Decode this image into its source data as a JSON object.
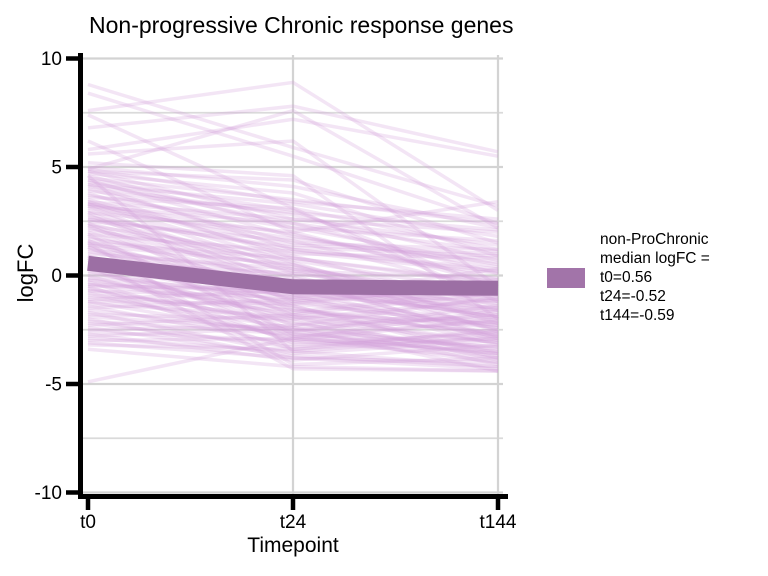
{
  "title": "Non-progressive Chronic response genes",
  "chart_data": {
    "type": "line",
    "title": "Non-progressive Chronic response genes",
    "xlabel": "Timepoint",
    "ylabel": "logFC",
    "x_categories": [
      "t0",
      "t24",
      "t144"
    ],
    "y_ticks": [
      10,
      5,
      0,
      -5,
      -10
    ],
    "y_minor_gridlines": [
      7.5,
      2.5,
      -2.5,
      -7.5
    ],
    "ylim": [
      -10,
      10
    ],
    "grid": "major-and-minor-light-gray",
    "legend_position": "right",
    "legend": {
      "swatch_color": "#a274a9",
      "lines": [
        "non-ProChronic",
        "median logFC =",
        "t0=0.56",
        "t24=-0.52",
        "t144=-0.59"
      ]
    },
    "median_series": {
      "name": "non-ProChronic median logFC",
      "values": [
        0.56,
        -0.52,
        -0.59
      ],
      "color": "#9c6fa4"
    },
    "background_lines": {
      "color": "#d29fda",
      "opacity": 0.27,
      "note": "individual gene logFC trajectories (approximate)",
      "values": [
        [
          8.8,
          5.9,
          3.2
        ],
        [
          8.4,
          5.5,
          2.4
        ],
        [
          7.6,
          8.9,
          3.0
        ],
        [
          6.8,
          7.8,
          5.7
        ],
        [
          5.8,
          7.2,
          5.5
        ],
        [
          7.4,
          3.1,
          1.2
        ],
        [
          5.6,
          6.2,
          -0.5
        ],
        [
          4.9,
          7.6,
          2.2
        ],
        [
          6.2,
          2.0,
          3.4
        ],
        [
          5.2,
          4.6,
          -2.0
        ],
        [
          -4.9,
          -2.9,
          -3.6
        ],
        [
          -3.4,
          -4.2,
          -4.4
        ],
        [
          1.5,
          -4.1,
          -3.8
        ],
        [
          4.6,
          -3.5,
          -4.2
        ],
        [
          0.8,
          -4.3,
          -4.4
        ],
        [
          5.0,
          4.1,
          2.2
        ],
        [
          4.9,
          3.4,
          2.6
        ],
        [
          4.8,
          4.4,
          1.5
        ],
        [
          4.8,
          2.6,
          2.0
        ],
        [
          4.7,
          3.8,
          0.9
        ],
        [
          4.6,
          2.2,
          1.6
        ],
        [
          4.5,
          3.5,
          2.4
        ],
        [
          4.4,
          1.8,
          0.4
        ],
        [
          4.4,
          3.0,
          -0.6
        ],
        [
          4.3,
          2.4,
          1.1
        ],
        [
          4.2,
          3.3,
          1.8
        ],
        [
          4.2,
          1.2,
          0.2
        ],
        [
          4.1,
          2.8,
          0.7
        ],
        [
          4.0,
          1.5,
          1.2
        ],
        [
          3.9,
          2.9,
          2.1
        ],
        [
          3.8,
          0.8,
          -0.3
        ],
        [
          3.7,
          2.2,
          0.5
        ],
        [
          3.6,
          3.1,
          -1.2
        ],
        [
          3.5,
          1.0,
          0.8
        ],
        [
          3.4,
          2.6,
          1.4
        ],
        [
          3.3,
          0.3,
          -0.9
        ],
        [
          3.3,
          1.9,
          -0.2
        ],
        [
          3.2,
          2.4,
          0.1
        ],
        [
          3.2,
          -0.4,
          -1.5
        ],
        [
          3.3,
          1.4,
          1.0
        ],
        [
          3.4,
          0.6,
          -2.2
        ],
        [
          3.1,
          1.7,
          0.6
        ],
        [
          3.0,
          0.1,
          -1.1
        ],
        [
          2.9,
          2.0,
          -0.4
        ],
        [
          2.8,
          -0.8,
          -1.8
        ],
        [
          2.7,
          1.2,
          0.3
        ],
        [
          2.6,
          0.5,
          -2.6
        ],
        [
          2.5,
          1.6,
          -0.7
        ],
        [
          2.4,
          -1.2,
          -0.5
        ],
        [
          2.3,
          0.9,
          -1.4
        ],
        [
          2.2,
          -0.1,
          -2.1
        ],
        [
          2.6,
          1.3,
          0.9
        ],
        [
          2.9,
          -0.6,
          -3.0
        ],
        [
          2.4,
          0.2,
          -0.1
        ],
        [
          2.3,
          -1.6,
          -2.4
        ],
        [
          2.1,
          0.7,
          -0.8
        ],
        [
          2.0,
          -0.9,
          -1.6
        ],
        [
          1.9,
          1.1,
          0.1
        ],
        [
          1.8,
          -0.3,
          -2.8
        ],
        [
          1.7,
          0.4,
          -1.2
        ],
        [
          1.6,
          -1.8,
          -2.2
        ],
        [
          1.5,
          0.8,
          -0.4
        ],
        [
          1.4,
          -0.6,
          -1.9
        ],
        [
          1.3,
          -2.3,
          -1.0
        ],
        [
          1.2,
          0.0,
          -2.5
        ],
        [
          1.6,
          -1.1,
          -0.2
        ],
        [
          1.9,
          -2.7,
          -3.3
        ],
        [
          1.4,
          0.5,
          -1.6
        ],
        [
          1.3,
          -1.4,
          -3.6
        ],
        [
          1.1,
          -0.5,
          -1.3
        ],
        [
          1.0,
          0.3,
          -2.0
        ],
        [
          0.9,
          -1.7,
          -0.6
        ],
        [
          0.8,
          -0.2,
          -2.9
        ],
        [
          0.7,
          -2.5,
          -1.8
        ],
        [
          0.6,
          0.1,
          -1.0
        ],
        [
          0.5,
          -1.3,
          -2.3
        ],
        [
          0.4,
          -3.1,
          -2.7
        ],
        [
          0.3,
          -0.7,
          -1.5
        ],
        [
          0.2,
          -2.0,
          -3.1
        ],
        [
          0.6,
          -1.0,
          0.3
        ],
        [
          0.9,
          -2.8,
          -4.0
        ],
        [
          0.4,
          -0.4,
          -1.7
        ],
        [
          0.3,
          -1.9,
          -2.6
        ],
        [
          0.1,
          -1.2,
          -2.4
        ],
        [
          0.0,
          -2.6,
          -1.4
        ],
        [
          -0.1,
          -0.9,
          -3.2
        ],
        [
          -0.2,
          -1.8,
          -0.8
        ],
        [
          -0.3,
          -3.0,
          -2.0
        ],
        [
          -0.4,
          -1.5,
          -2.8
        ],
        [
          -0.5,
          -0.6,
          -1.9
        ],
        [
          -0.6,
          -2.2,
          -3.5
        ],
        [
          -0.7,
          -1.0,
          -2.2
        ],
        [
          -0.8,
          -2.9,
          -1.6
        ],
        [
          -0.2,
          -1.4,
          -3.8
        ],
        [
          -0.5,
          -3.4,
          -2.5
        ],
        [
          -0.7,
          -2.1,
          -4.1
        ],
        [
          -0.4,
          -0.8,
          -0.9
        ],
        [
          -0.9,
          -1.6,
          -2.7
        ],
        [
          -1.0,
          -2.4,
          -3.4
        ],
        [
          -1.1,
          -0.7,
          -1.2
        ],
        [
          -1.2,
          -2.8,
          -2.1
        ],
        [
          -1.3,
          -1.9,
          -3.9
        ],
        [
          -1.4,
          -3.2,
          -2.9
        ],
        [
          -1.5,
          -1.1,
          -2.3
        ],
        [
          -1.6,
          -2.6,
          -3.7
        ],
        [
          -1.7,
          -3.6,
          -3.0
        ],
        [
          -1.8,
          -2.0,
          -1.1
        ],
        [
          -1.9,
          -2.5,
          -3.3
        ],
        [
          -2.0,
          -3.8,
          -4.3
        ],
        [
          -1.2,
          -1.3,
          -0.4
        ],
        [
          -2.1,
          -2.7,
          -3.6
        ],
        [
          -2.2,
          -3.3,
          -2.6
        ],
        [
          -2.3,
          -1.8,
          -3.1
        ],
        [
          -2.4,
          -3.7,
          -4.2
        ],
        [
          -2.5,
          -2.3,
          -1.9
        ],
        [
          -2.6,
          -3.0,
          -3.8
        ],
        [
          -2.7,
          -3.9,
          -3.2
        ],
        [
          -2.8,
          -2.4,
          -4.4
        ],
        [
          -2.9,
          -3.5,
          -2.8
        ],
        [
          -3.0,
          -2.9,
          -3.5
        ],
        [
          -3.1,
          -3.8,
          -4.0
        ],
        [
          -3.2,
          -3.4,
          -2.9
        ]
      ]
    },
    "colors": {
      "axis": "#000000",
      "grid_major": "#d3d3d3",
      "grid_minor": "#dadada",
      "panel_background": "#ffffff"
    }
  }
}
